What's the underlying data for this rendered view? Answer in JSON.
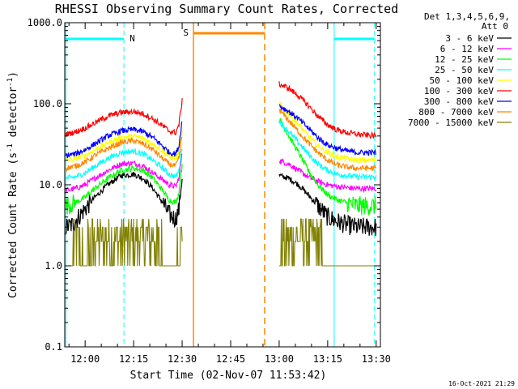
{
  "chart_data": {
    "type": "line",
    "title": "RHESSI Observing Summary Count Rates, Corrected",
    "xlabel": "Start Time (02-Nov-07 11:53:42)",
    "ylabel_main": "Corrected Count Rate (s",
    "ylabel_sup1": "-1",
    "ylabel_mid": " detector",
    "ylabel_sup2": "-1",
    "ylabel_end": ")",
    "y_scale": "log",
    "ylim": [
      0.1,
      1000
    ],
    "x_range": [
      "11:53:42",
      "13:31:00"
    ],
    "x_tick_labels": [
      "12:00",
      "12:15",
      "12:30",
      "12:45",
      "13:00",
      "13:15",
      "13:30"
    ],
    "x_tick_minutes": [
      0,
      15,
      30,
      45,
      60,
      75,
      90
    ],
    "y_tick_labels": [
      "1000.0",
      "100.0",
      "10.0",
      "1.0",
      "0.1"
    ],
    "y_tick_values": [
      1000,
      100,
      10,
      1,
      0.1
    ],
    "legend_header": [
      "Det 1,3,4,5,6,9,",
      "Att 0"
    ],
    "legend_position": "top-right",
    "series": [
      {
        "name": "3 - 6 keV",
        "color": "#000000",
        "segments": [
          {
            "x": [
              -6,
              -4,
              -1,
              3,
              7,
              11,
              15,
              18,
              21,
              24,
              26,
              28,
              29,
              30
            ],
            "y": [
              3.0,
              3.2,
              4.5,
              7,
              10,
              13,
              13.5,
              12,
              9,
              6,
              4.3,
              3.8,
              5,
              12
            ]
          },
          {
            "x": [
              60,
              63,
              66,
              69,
              72,
              75,
              78,
              81,
              84,
              87,
              90
            ],
            "y": [
              13,
              12,
              10,
              7.5,
              5.5,
              4,
              3.5,
              3.2,
              3.0,
              3.0,
              3.0
            ]
          }
        ]
      },
      {
        "name": "6 - 12 keV",
        "color": "#ff00ff",
        "segments": [
          {
            "x": [
              -6,
              -3,
              0,
              3,
              7,
              11,
              15,
              18,
              21,
              24,
              26,
              28,
              29,
              30
            ],
            "y": [
              8.5,
              9,
              10,
              12,
              15,
              18,
              18.5,
              17,
              14,
              11.5,
              10,
              9.5,
              12,
              25
            ]
          },
          {
            "x": [
              60,
              63,
              66,
              69,
              72,
              75,
              78,
              81,
              84,
              87,
              90
            ],
            "y": [
              20,
              18,
              15,
              12.5,
              11,
              10,
              9.5,
              9.2,
              9.0,
              9.0,
              9.0
            ]
          }
        ]
      },
      {
        "name": "12 - 25 keV",
        "color": "#00ff00",
        "segments": [
          {
            "x": [
              -6,
              -3,
              0,
              3,
              7,
              11,
              15,
              18,
              21,
              24,
              26,
              28,
              29,
              30
            ],
            "y": [
              5.5,
              6,
              7,
              9,
              12,
              15,
              16,
              15,
              12,
              8.5,
              6.5,
              6,
              8,
              18
            ]
          },
          {
            "x": [
              60,
              63,
              66,
              69,
              72,
              75,
              78,
              81,
              84,
              87,
              90
            ],
            "y": [
              65,
              40,
              25,
              15,
              10,
              7.5,
              6.5,
              6,
              5.5,
              5.5,
              5.5
            ]
          }
        ]
      },
      {
        "name": "25 - 50 keV",
        "color": "#00ffff",
        "segments": [
          {
            "x": [
              -6,
              -3,
              0,
              3,
              7,
              11,
              15,
              18,
              21,
              24,
              26,
              28,
              29,
              30
            ],
            "y": [
              12,
              12.5,
              14,
              17,
              21,
              25,
              26,
              24,
              20,
              16,
              13.5,
              12.5,
              15,
              30
            ]
          },
          {
            "x": [
              60,
              63,
              66,
              69,
              72,
              75,
              78,
              81,
              84,
              87,
              90
            ],
            "y": [
              60,
              45,
              33,
              24,
              18,
              15,
              13.5,
              13,
              12.5,
              12.5,
              12.5
            ]
          }
        ]
      },
      {
        "name": "50 - 100 keV",
        "color": "#ffff00",
        "segments": [
          {
            "x": [
              -6,
              -3,
              0,
              3,
              7,
              11,
              15,
              18,
              21,
              24,
              26,
              28,
              29,
              30
            ],
            "y": [
              20,
              21,
              23,
              27,
              33,
              38,
              40,
              37,
              32,
              26,
              22,
              21,
              25,
              45
            ]
          },
          {
            "x": [
              60,
              63,
              66,
              69,
              72,
              75,
              78,
              81,
              84,
              87,
              90
            ],
            "y": [
              100,
              75,
              55,
              40,
              30,
              25,
              22,
              21,
              20,
              20,
              20
            ]
          }
        ]
      },
      {
        "name": "100 - 300 keV",
        "color": "#ff0000",
        "segments": [
          {
            "x": [
              -6,
              -3,
              0,
              3,
              7,
              11,
              15,
              18,
              21,
              24,
              26,
              28,
              29,
              30
            ],
            "y": [
              42,
              45,
              50,
              58,
              70,
              78,
              80,
              75,
              65,
              53,
              46,
              44,
              55,
              110
            ]
          },
          {
            "x": [
              60,
              63,
              66,
              69,
              72,
              75,
              78,
              81,
              84,
              87,
              90
            ],
            "y": [
              175,
              155,
              125,
              95,
              70,
              55,
              47,
              44,
              42,
              41,
              40
            ]
          }
        ]
      },
      {
        "name": "300 - 800 keV",
        "color": "#0000ff",
        "segments": [
          {
            "x": [
              -6,
              -3,
              0,
              3,
              7,
              11,
              15,
              18,
              21,
              24,
              26,
              28,
              29,
              30
            ],
            "y": [
              23,
              24,
              27,
              32,
              40,
              46,
              48,
              45,
              38,
              30,
              25,
              24,
              30,
              65
            ]
          },
          {
            "x": [
              60,
              63,
              66,
              69,
              72,
              75,
              78,
              81,
              84,
              87,
              90
            ],
            "y": [
              95,
              80,
              65,
              50,
              38,
              31,
              28,
              26,
              25,
              25,
              25
            ]
          }
        ]
      },
      {
        "name": "800 - 7000 keV",
        "color": "#ff8800",
        "segments": [
          {
            "x": [
              -6,
              -3,
              0,
              3,
              7,
              11,
              15,
              18,
              21,
              24,
              26,
              28,
              29,
              30
            ],
            "y": [
              16,
              17,
              19,
              23,
              28,
              33,
              35,
              32,
              27,
              21,
              18,
              17,
              21,
              40
            ]
          },
          {
            "x": [
              60,
              63,
              66,
              69,
              72,
              75,
              78,
              81,
              84,
              87,
              90
            ],
            "y": [
              85,
              62,
              45,
              33,
              25,
              20,
              17.5,
              16.5,
              16,
              16,
              16
            ]
          }
        ]
      },
      {
        "name": "7000 - 15000 keV",
        "color": "#808000",
        "segments": [
          {
            "x": [
              -6,
              -4,
              -3,
              0,
              4,
              8,
              12,
              15,
              17,
              20,
              23,
              25,
              28,
              29.5,
              30
            ],
            "y": [
              1.0,
              1.0,
              2.0,
              1.0,
              2.5,
              3.5,
              3.5,
              3.0,
              3.5,
              2.5,
              1.5,
              1.0,
              1.0,
              2.0,
              3.5
            ]
          },
          {
            "x": [
              60,
              62,
              64,
              66,
              68,
              70,
              72,
              74,
              76,
              80,
              84,
              90
            ],
            "y": [
              1.0,
              3.5,
              3.0,
              3.5,
              2.5,
              3.0,
              2.0,
              1.0,
              1.0,
              1.0,
              1.0,
              1.0
            ]
          }
        ]
      }
    ],
    "annotations": {
      "night_label": "N",
      "night_color": "#00ffff",
      "night_intervals": [
        [
          -6.0,
          12.0
        ],
        [
          77.0,
          89.5
        ]
      ],
      "saa_label": "S",
      "saa_color": "#ff8800",
      "saa_interval": [
        33.5,
        55.5
      ]
    },
    "grid": false
  },
  "timestamp": "16-Oct-2021 21:29"
}
